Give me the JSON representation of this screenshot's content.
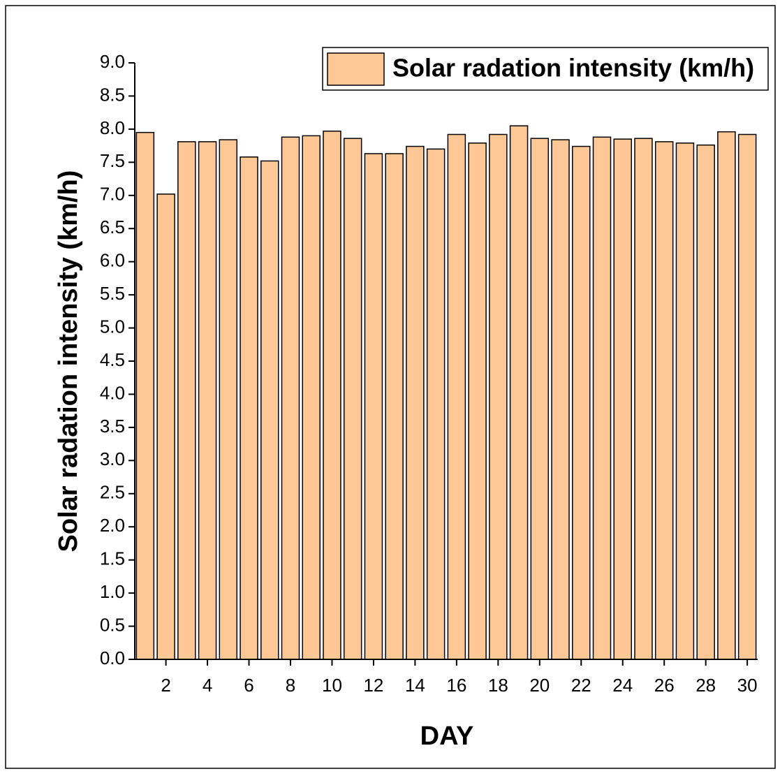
{
  "chart_data": {
    "type": "bar",
    "x": [
      1,
      2,
      3,
      4,
      5,
      6,
      7,
      8,
      9,
      10,
      11,
      12,
      13,
      14,
      15,
      16,
      17,
      18,
      19,
      20,
      21,
      22,
      23,
      24,
      25,
      26,
      27,
      28,
      29,
      30
    ],
    "series": [
      {
        "name": "Solar radation intensity (km/h)",
        "color": "#fdc896",
        "values": [
          7.95,
          7.02,
          7.81,
          7.81,
          7.84,
          7.58,
          7.52,
          7.88,
          7.9,
          7.97,
          7.86,
          7.63,
          7.63,
          7.74,
          7.7,
          7.92,
          7.79,
          7.92,
          8.05,
          7.86,
          7.84,
          7.74,
          7.88,
          7.85,
          7.86,
          7.81,
          7.79,
          7.76,
          7.96,
          7.92
        ]
      }
    ],
    "xlabel": "DAY",
    "ylabel": "Solar radation intensity (km/h)",
    "xlim": [
      0.5,
      30.5
    ],
    "xticks": [
      2,
      4,
      6,
      8,
      10,
      12,
      14,
      16,
      18,
      20,
      22,
      24,
      26,
      28,
      30
    ],
    "ylim": [
      0,
      9
    ],
    "yticks": [
      {
        "value": 0,
        "label": "0.0"
      },
      {
        "value": 0.5,
        "label": "0.5"
      },
      {
        "value": 1,
        "label": "1.0"
      },
      {
        "value": 1.5,
        "label": "1.5"
      },
      {
        "value": 2,
        "label": "2.0"
      },
      {
        "value": 2.5,
        "label": "2.5"
      },
      {
        "value": 3,
        "label": "3.0"
      },
      {
        "value": 3.5,
        "label": "3.5"
      },
      {
        "value": 4,
        "label": "4.0"
      },
      {
        "value": 4.5,
        "label": "4.5"
      },
      {
        "value": 5,
        "label": "5.0"
      },
      {
        "value": 5.5,
        "label": "5.5"
      },
      {
        "value": 6,
        "label": "6.0"
      },
      {
        "value": 6.5,
        "label": "6.5"
      },
      {
        "value": 7,
        "label": "7.0"
      },
      {
        "value": 7.5,
        "label": "7.5"
      },
      {
        "value": 8,
        "label": "8.0"
      },
      {
        "value": 8.5,
        "label": "8.5"
      },
      {
        "value": 9,
        "label": "9.0"
      }
    ],
    "legend": "upper right",
    "grid": false
  }
}
